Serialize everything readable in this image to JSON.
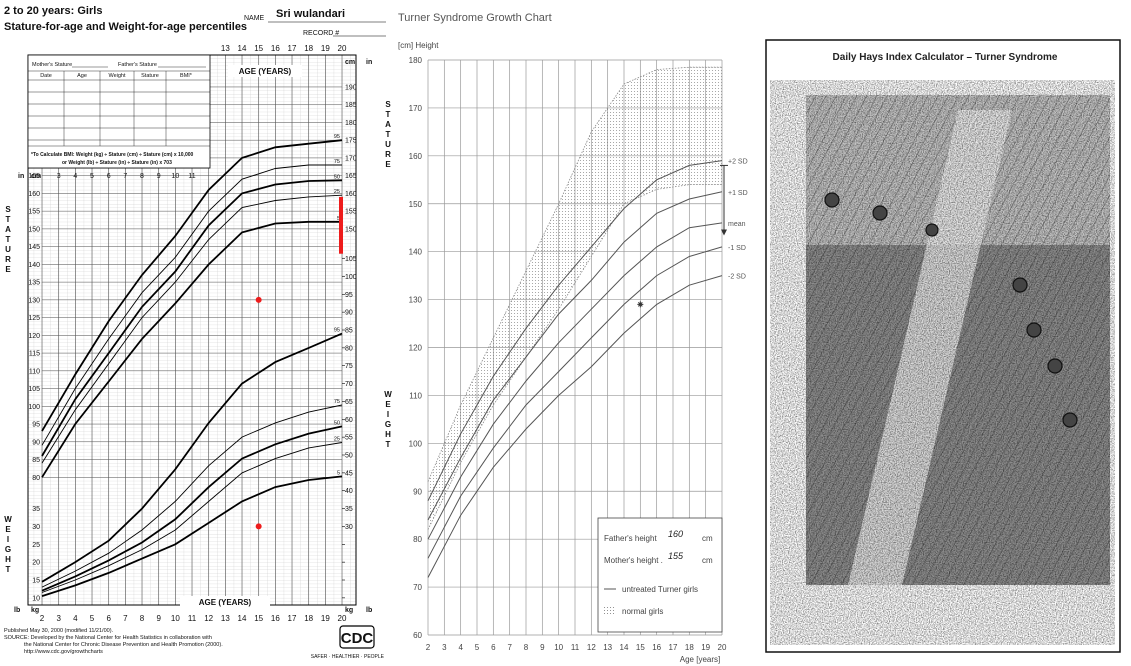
{
  "chart_data": [
    {
      "type": "line",
      "title": "2 to 20 years: Girls",
      "subtitle": "Stature-for-age and Weight-for-age percentiles",
      "name_label": "NAME",
      "name": "Sri wulandari",
      "record_label": "RECORD #",
      "x_label": "AGE (YEARS)",
      "y_label": "STATURE",
      "y2_label": "WEIGHT",
      "y_unit": "cm",
      "y_unit_alt": "in",
      "y2_unit": "kg",
      "y2_unit_alt": "lb",
      "x": [
        2,
        4,
        6,
        8,
        10,
        12,
        14,
        16,
        18,
        20
      ],
      "xlim": [
        2,
        20
      ],
      "xticks": [
        2,
        3,
        4,
        5,
        6,
        7,
        8,
        9,
        10,
        11,
        12,
        13,
        14,
        15,
        16,
        17,
        18,
        19,
        20
      ],
      "ylim": [
        44,
        199
      ],
      "yticks": [
        80,
        85,
        90,
        95,
        100,
        105,
        110,
        115,
        120,
        125,
        130,
        135,
        140,
        145,
        150,
        155,
        160,
        165,
        170,
        175,
        180,
        185,
        190
      ],
      "y2lim": [
        8,
        162
      ],
      "y2ticks": [
        10,
        15,
        20,
        25,
        30,
        35,
        40,
        45,
        50,
        55,
        60,
        65,
        70,
        75,
        80,
        85,
        90,
        95,
        100,
        105
      ],
      "grid": true,
      "series": [
        {
          "name": "95",
          "color": "#000000",
          "bold": true,
          "values": [
            93,
            109,
            124,
            137,
            148,
            161,
            170,
            173,
            174,
            175
          ]
        },
        {
          "name": "75",
          "color": "#000000",
          "bold": false,
          "values": [
            89,
            105,
            119,
            132,
            142,
            155,
            164,
            167,
            168,
            168
          ]
        },
        {
          "name": "50",
          "color": "#000000",
          "bold": true,
          "values": [
            86,
            102,
            115,
            128,
            138,
            151,
            160,
            162.5,
            163.5,
            163.7
          ]
        },
        {
          "name": "25",
          "color": "#000000",
          "bold": false,
          "values": [
            84,
            99,
            112,
            125,
            135,
            147,
            156,
            158,
            159,
            159.5
          ]
        },
        {
          "name": "5",
          "color": "#000000",
          "bold": true,
          "values": [
            80,
            95,
            107,
            119,
            129,
            140,
            149,
            151.5,
            152,
            152
          ]
        },
        {
          "name": "95",
          "color": "#000000",
          "bold": true,
          "axis": "y2",
          "values": [
            14.5,
            20,
            26,
            35,
            46,
            59,
            70,
            76,
            80,
            84
          ]
        },
        {
          "name": "75",
          "color": "#000000",
          "bold": false,
          "axis": "y2",
          "values": [
            13,
            17.5,
            22.5,
            29,
            37,
            47,
            55,
            59,
            62,
            64
          ]
        },
        {
          "name": "50",
          "color": "#000000",
          "bold": true,
          "axis": "y2",
          "values": [
            12,
            16,
            20.5,
            25.5,
            32,
            41,
            49,
            53,
            56,
            58
          ]
        },
        {
          "name": "25",
          "color": "#000000",
          "bold": false,
          "axis": "y2",
          "values": [
            11.5,
            15,
            19,
            23.5,
            29,
            37,
            45,
            49,
            52,
            53.5
          ]
        },
        {
          "name": "5",
          "color": "#000000",
          "bold": true,
          "axis": "y2",
          "values": [
            10.5,
            13.5,
            17,
            21,
            25,
            31,
            37,
            41,
            43,
            44
          ]
        }
      ],
      "patient": {
        "x": 15,
        "stature": 130,
        "weight": 30,
        "color": "#ee1c1c",
        "marker": "dot"
      },
      "target_range": {
        "x": 20,
        "values": [
          143,
          159
        ],
        "color": "#ee1c1c",
        "style": "bar"
      },
      "table": {
        "mother": "Mother's Stature",
        "father": "Father's Stature",
        "headers": [
          "Date",
          "Age",
          "Weight",
          "Stature",
          "BMI*"
        ]
      },
      "bmi_note": [
        "*To Calculate BMI: Weight (kg) ÷ Stature (cm) ÷ Stature (cm) x 10,000",
        "or Weight (lb) ÷ Stature (in) ÷ Stature (in) x 703"
      ],
      "footer": [
        "Published May 30, 2000 (modified 11/21/00).",
        "SOURCE: Developed by the National Center for Health Statistics in collaboration with",
        "the National Center for Chronic Disease Prevention and Health Promotion (2000).",
        "http://www.cdc.gov/growthcharts"
      ],
      "logo": "CDC",
      "logo_tagline": "SAFER · HEALTHIER · PEOPLE"
    },
    {
      "type": "line",
      "title": "Turner Syndrome Growth Chart",
      "y_label": "[cm] Height",
      "x_label": "Age [years]",
      "x": [
        2,
        4,
        6,
        8,
        10,
        12,
        14,
        16,
        18,
        20
      ],
      "xlim": [
        2,
        20
      ],
      "xticks": [
        2,
        3,
        4,
        5,
        6,
        7,
        8,
        9,
        10,
        11,
        12,
        13,
        14,
        15,
        16,
        17,
        18,
        19,
        20
      ],
      "ylim": [
        60,
        180
      ],
      "yticks": [
        60,
        70,
        80,
        90,
        100,
        110,
        120,
        130,
        140,
        150,
        160,
        170,
        180
      ],
      "grid": true,
      "series_label": "untreated Turner girls",
      "series": [
        {
          "name": "+2 SD",
          "color": "#555555",
          "values": [
            88,
            102,
            114,
            124,
            133,
            141,
            149,
            155,
            158,
            159
          ]
        },
        {
          "name": "+1 SD",
          "color": "#555555",
          "values": [
            84,
            97,
            109,
            118,
            127,
            134,
            142,
            148,
            151,
            152.5
          ]
        },
        {
          "name": "mean",
          "color": "#555555",
          "values": [
            80,
            93,
            104,
            113,
            121,
            128,
            135,
            141,
            145,
            146
          ]
        },
        {
          "name": "-1 SD",
          "color": "#555555",
          "values": [
            76,
            89,
            99,
            108,
            115,
            122,
            129,
            135,
            139,
            141
          ]
        },
        {
          "name": "-2 SD",
          "color": "#555555",
          "values": [
            72,
            85,
            95,
            103,
            110,
            116,
            123,
            129,
            133,
            135
          ]
        }
      ],
      "band": {
        "name": "normal girls",
        "color": "#8a8a8a",
        "upper": [
          92,
          108,
          122,
          136,
          150,
          165,
          175,
          178,
          178.5,
          178.5
        ],
        "lower": [
          82,
          96,
          108,
          118,
          128,
          139,
          150,
          153,
          154,
          154
        ]
      },
      "legend": {
        "father_label": "Father's height",
        "father_value": 160,
        "mother_label": "Mother's height .",
        "mother_value": 155,
        "unit": "cm"
      },
      "patient": {
        "x": 15,
        "value": 129,
        "color": "#333333",
        "marker": "star"
      },
      "target_range": {
        "x": 20,
        "values": [
          144,
          158
        ],
        "color": "#333333",
        "style": "arrow"
      }
    },
    {
      "type": "image",
      "title": "Daily Hays Index Calculator – Turner Syndrome"
    }
  ]
}
